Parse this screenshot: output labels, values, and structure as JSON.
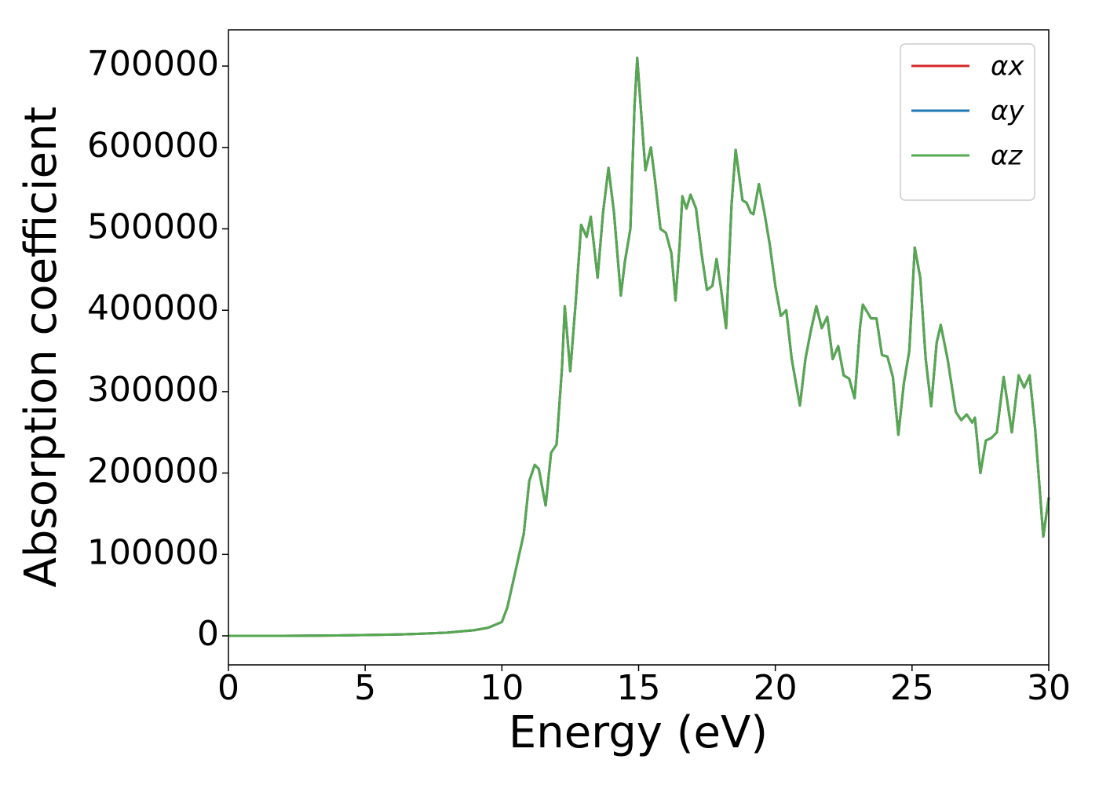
{
  "chart_data": {
    "type": "line",
    "xlabel": "Energy (eV)",
    "ylabel": "Absorption coefficient",
    "xlim": [
      0,
      30
    ],
    "xticks": [
      0,
      5,
      10,
      15,
      20,
      25,
      30
    ],
    "ylim": [
      -35700,
      744500
    ],
    "yticks": [
      0,
      100000,
      200000,
      300000,
      400000,
      500000,
      600000,
      700000
    ],
    "legend": "upper right",
    "grid": false,
    "x": [
      0,
      2,
      4,
      6,
      7,
      8,
      9,
      9.5,
      10,
      10.2,
      10.5,
      10.8,
      11,
      11.2,
      11.35,
      11.6,
      11.8,
      12,
      12.2,
      12.3,
      12.5,
      12.7,
      12.9,
      13.1,
      13.25,
      13.5,
      13.7,
      13.9,
      14.1,
      14.35,
      14.5,
      14.7,
      14.85,
      14.95,
      15.1,
      15.25,
      15.45,
      15.6,
      15.8,
      16,
      16.2,
      16.35,
      16.5,
      16.6,
      16.75,
      16.9,
      17.1,
      17.3,
      17.5,
      17.7,
      17.85,
      18,
      18.2,
      18.4,
      18.55,
      18.8,
      18.95,
      19.1,
      19.2,
      19.4,
      19.6,
      19.8,
      20,
      20.2,
      20.4,
      20.6,
      20.9,
      21.1,
      21.3,
      21.5,
      21.7,
      21.9,
      22.1,
      22.3,
      22.5,
      22.7,
      22.9,
      23.1,
      23.2,
      23.5,
      23.7,
      23.9,
      24.1,
      24.3,
      24.5,
      24.7,
      24.9,
      25.1,
      25.3,
      25.5,
      25.7,
      25.9,
      26.05,
      26.3,
      26.6,
      26.8,
      27,
      27.2,
      27.3,
      27.5,
      27.7,
      27.9,
      28.1,
      28.35,
      28.65,
      28.9,
      29.1,
      29.3,
      29.5,
      29.8,
      30
    ],
    "series": [
      {
        "name": "αx",
        "color": "#d62728",
        "values": [
          0,
          0,
          500,
          1500,
          2500,
          4000,
          7000,
          10000,
          17000,
          35000,
          80000,
          125000,
          190000,
          210000,
          205000,
          160000,
          225000,
          235000,
          330000,
          405000,
          325000,
          410000,
          505000,
          490000,
          515000,
          440000,
          520000,
          575000,
          520000,
          418000,
          460000,
          500000,
          650000,
          710000,
          640000,
          572000,
          600000,
          560000,
          500000,
          495000,
          470000,
          412000,
          480000,
          540000,
          525000,
          542000,
          525000,
          470000,
          425000,
          430000,
          463000,
          430000,
          378000,
          530000,
          597000,
          535000,
          532000,
          520000,
          518000,
          555000,
          520000,
          480000,
          430000,
          393000,
          400000,
          340000,
          283000,
          340000,
          375000,
          405000,
          378000,
          392000,
          340000,
          356000,
          320000,
          316000,
          292000,
          380000,
          407000,
          390000,
          390000,
          345000,
          343000,
          318000,
          247000,
          310000,
          350000,
          477000,
          440000,
          340000,
          282000,
          360000,
          382000,
          340000,
          275000,
          265000,
          272000,
          262000,
          268000,
          200000,
          240000,
          243000,
          250000,
          318000,
          250000,
          320000,
          305000,
          320000,
          255000,
          122000,
          170000
        ]
      },
      {
        "name": "αy",
        "color": "#1f77b4",
        "values": [
          0,
          0,
          500,
          1500,
          2500,
          4000,
          7000,
          10000,
          17000,
          35000,
          80000,
          125000,
          190000,
          210000,
          205000,
          160000,
          225000,
          235000,
          330000,
          405000,
          325000,
          410000,
          505000,
          490000,
          515000,
          440000,
          520000,
          575000,
          520000,
          418000,
          460000,
          500000,
          650000,
          710000,
          640000,
          572000,
          600000,
          560000,
          500000,
          495000,
          470000,
          412000,
          480000,
          540000,
          525000,
          542000,
          525000,
          470000,
          425000,
          430000,
          463000,
          430000,
          378000,
          530000,
          597000,
          535000,
          532000,
          520000,
          518000,
          555000,
          520000,
          480000,
          430000,
          393000,
          400000,
          340000,
          283000,
          340000,
          375000,
          405000,
          378000,
          392000,
          340000,
          356000,
          320000,
          316000,
          292000,
          380000,
          407000,
          390000,
          390000,
          345000,
          343000,
          318000,
          247000,
          310000,
          350000,
          477000,
          440000,
          340000,
          282000,
          360000,
          382000,
          340000,
          275000,
          265000,
          272000,
          262000,
          268000,
          200000,
          240000,
          243000,
          250000,
          318000,
          250000,
          320000,
          305000,
          320000,
          255000,
          122000,
          170000
        ]
      },
      {
        "name": "αz",
        "color": "#55a84f",
        "values": [
          0,
          0,
          500,
          1500,
          2500,
          4000,
          7000,
          10000,
          17000,
          35000,
          80000,
          125000,
          190000,
          210000,
          205000,
          160000,
          225000,
          235000,
          330000,
          405000,
          325000,
          410000,
          505000,
          490000,
          515000,
          440000,
          520000,
          575000,
          520000,
          418000,
          460000,
          500000,
          650000,
          710000,
          640000,
          572000,
          600000,
          560000,
          500000,
          495000,
          470000,
          412000,
          480000,
          540000,
          525000,
          542000,
          525000,
          470000,
          425000,
          430000,
          463000,
          430000,
          378000,
          530000,
          597000,
          535000,
          532000,
          520000,
          518000,
          555000,
          520000,
          480000,
          430000,
          393000,
          400000,
          340000,
          283000,
          340000,
          375000,
          405000,
          378000,
          392000,
          340000,
          356000,
          320000,
          316000,
          292000,
          380000,
          407000,
          390000,
          390000,
          345000,
          343000,
          318000,
          247000,
          310000,
          350000,
          477000,
          440000,
          340000,
          282000,
          360000,
          382000,
          340000,
          275000,
          265000,
          272000,
          262000,
          268000,
          200000,
          240000,
          243000,
          250000,
          318000,
          250000,
          320000,
          305000,
          320000,
          255000,
          122000,
          170000
        ]
      }
    ]
  }
}
